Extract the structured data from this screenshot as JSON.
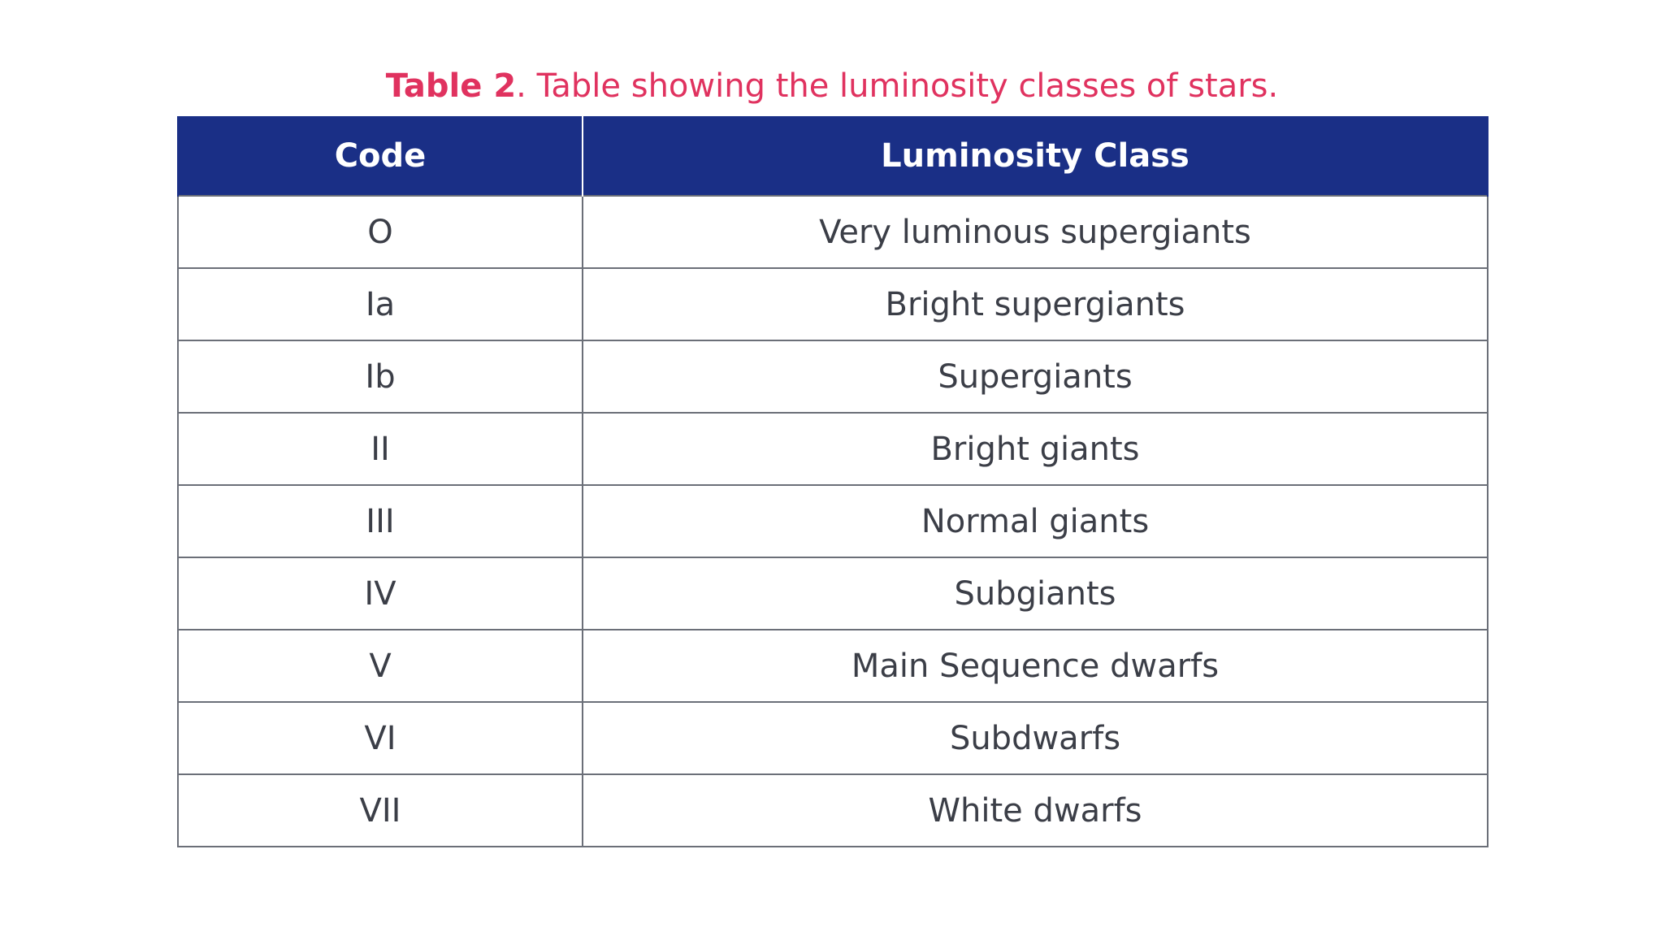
{
  "caption": {
    "label": "Table 2",
    "text": ". Table showing the luminosity classes of stars."
  },
  "table": {
    "headers": [
      "Code",
      "Luminosity Class"
    ],
    "rows": [
      {
        "code": "O",
        "class": "Very luminous supergiants"
      },
      {
        "code": "Ia",
        "class": "Bright supergiants"
      },
      {
        "code": "Ib",
        "class": "Supergiants"
      },
      {
        "code": "II",
        "class": "Bright giants"
      },
      {
        "code": "III",
        "class": "Normal giants"
      },
      {
        "code": "IV",
        "class": "Subgiants"
      },
      {
        "code": "V",
        "class": "Main Sequence dwarfs"
      },
      {
        "code": "VI",
        "class": "Subdwarfs"
      },
      {
        "code": "VII",
        "class": "White dwarfs"
      }
    ]
  },
  "colors": {
    "caption": "#e0325f",
    "header_background": "#1a2f86",
    "header_text": "#ffffff",
    "cell_text": "#3b3e47",
    "border": "#6b6f78"
  }
}
